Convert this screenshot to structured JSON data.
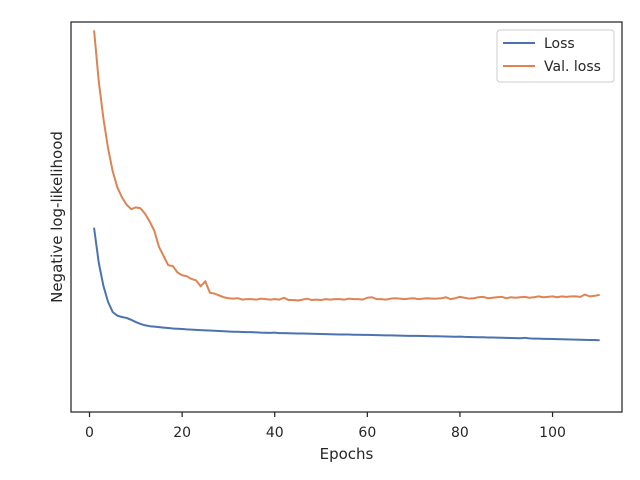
{
  "chart_data": {
    "type": "line",
    "xlabel": "Epochs",
    "ylabel": "Negative log-likelihood",
    "xlim": [
      -4,
      115
    ],
    "ylim": [
      -4.2,
      4.3
    ],
    "xticks": [
      0,
      20,
      40,
      60,
      80,
      100
    ],
    "xtick_labels": [
      "0",
      "20",
      "40",
      "60",
      "80",
      "100"
    ],
    "show_yticks": false,
    "grid": false,
    "legend": {
      "placement": "top-right"
    },
    "series": [
      {
        "name": "Loss",
        "color": "#4c72b0",
        "x": [
          1,
          2,
          3,
          4,
          5,
          6,
          7,
          8,
          9,
          10,
          11,
          12,
          13,
          14,
          15,
          16,
          17,
          18,
          19,
          20,
          21,
          22,
          23,
          24,
          25,
          26,
          27,
          28,
          29,
          30,
          31,
          32,
          33,
          34,
          35,
          36,
          37,
          38,
          39,
          40,
          41,
          42,
          43,
          44,
          45,
          46,
          47,
          48,
          49,
          50,
          51,
          52,
          53,
          54,
          55,
          56,
          57,
          58,
          59,
          60,
          61,
          62,
          63,
          64,
          65,
          66,
          67,
          68,
          69,
          70,
          71,
          72,
          73,
          74,
          75,
          76,
          77,
          78,
          79,
          80,
          81,
          82,
          83,
          84,
          85,
          86,
          87,
          88,
          89,
          90,
          91,
          92,
          93,
          94,
          95,
          96,
          97,
          98,
          99,
          100,
          101,
          102,
          103,
          104,
          105,
          106,
          107,
          108,
          109,
          110
        ],
        "y": [
          -0.2,
          -0.95,
          -1.45,
          -1.8,
          -2.02,
          -2.1,
          -2.13,
          -2.15,
          -2.19,
          -2.24,
          -2.28,
          -2.31,
          -2.33,
          -2.34,
          -2.35,
          -2.36,
          -2.37,
          -2.38,
          -2.385,
          -2.39,
          -2.4,
          -2.405,
          -2.41,
          -2.415,
          -2.42,
          -2.425,
          -2.43,
          -2.435,
          -2.44,
          -2.445,
          -2.45,
          -2.452,
          -2.455,
          -2.458,
          -2.46,
          -2.465,
          -2.47,
          -2.472,
          -2.475,
          -2.47,
          -2.48,
          -2.482,
          -2.485,
          -2.487,
          -2.49,
          -2.49,
          -2.492,
          -2.495,
          -2.497,
          -2.5,
          -2.502,
          -2.505,
          -2.507,
          -2.51,
          -2.51,
          -2.512,
          -2.515,
          -2.517,
          -2.52,
          -2.52,
          -2.522,
          -2.525,
          -2.527,
          -2.53,
          -2.53,
          -2.533,
          -2.535,
          -2.538,
          -2.54,
          -2.54,
          -2.542,
          -2.545,
          -2.547,
          -2.55,
          -2.55,
          -2.553,
          -2.555,
          -2.557,
          -2.56,
          -2.558,
          -2.563,
          -2.565,
          -2.567,
          -2.57,
          -2.572,
          -2.575,
          -2.577,
          -2.58,
          -2.582,
          -2.585,
          -2.587,
          -2.59,
          -2.592,
          -2.583,
          -2.595,
          -2.6,
          -2.602,
          -2.605,
          -2.607,
          -2.61,
          -2.612,
          -2.615,
          -2.617,
          -2.62,
          -2.622,
          -2.625,
          -2.627,
          -2.63,
          -2.632,
          -2.635
        ]
      },
      {
        "name": "Val. loss",
        "color": "#dd8452",
        "x": [
          1,
          2,
          3,
          4,
          5,
          6,
          7,
          8,
          9,
          10,
          11,
          12,
          13,
          14,
          15,
          16,
          17,
          18,
          19,
          20,
          21,
          22,
          23,
          24,
          25,
          26,
          27,
          28,
          29,
          30,
          31,
          32,
          33,
          34,
          35,
          36,
          37,
          38,
          39,
          40,
          41,
          42,
          43,
          44,
          45,
          46,
          47,
          48,
          49,
          50,
          51,
          52,
          53,
          54,
          55,
          56,
          57,
          58,
          59,
          60,
          61,
          62,
          63,
          64,
          65,
          66,
          67,
          68,
          69,
          70,
          71,
          72,
          73,
          74,
          75,
          76,
          77,
          78,
          79,
          80,
          81,
          82,
          83,
          84,
          85,
          86,
          87,
          88,
          89,
          90,
          91,
          92,
          93,
          94,
          95,
          96,
          97,
          98,
          99,
          100,
          101,
          102,
          103,
          104,
          105,
          106,
          107,
          108,
          109,
          110
        ],
        "y": [
          4.1,
          3.0,
          2.2,
          1.55,
          1.05,
          0.7,
          0.48,
          0.32,
          0.22,
          0.26,
          0.24,
          0.12,
          -0.05,
          -0.25,
          -0.6,
          -0.8,
          -1.0,
          -1.02,
          -1.16,
          -1.22,
          -1.24,
          -1.3,
          -1.33,
          -1.46,
          -1.35,
          -1.6,
          -1.62,
          -1.66,
          -1.7,
          -1.72,
          -1.73,
          -1.72,
          -1.75,
          -1.74,
          -1.74,
          -1.75,
          -1.73,
          -1.74,
          -1.75,
          -1.74,
          -1.75,
          -1.71,
          -1.76,
          -1.76,
          -1.77,
          -1.75,
          -1.73,
          -1.76,
          -1.75,
          -1.76,
          -1.74,
          -1.75,
          -1.74,
          -1.74,
          -1.75,
          -1.73,
          -1.74,
          -1.74,
          -1.75,
          -1.71,
          -1.7,
          -1.74,
          -1.74,
          -1.75,
          -1.73,
          -1.72,
          -1.73,
          -1.74,
          -1.73,
          -1.72,
          -1.74,
          -1.73,
          -1.72,
          -1.73,
          -1.73,
          -1.72,
          -1.7,
          -1.74,
          -1.72,
          -1.69,
          -1.71,
          -1.73,
          -1.72,
          -1.7,
          -1.69,
          -1.72,
          -1.71,
          -1.7,
          -1.69,
          -1.72,
          -1.7,
          -1.71,
          -1.7,
          -1.69,
          -1.71,
          -1.7,
          -1.68,
          -1.7,
          -1.69,
          -1.68,
          -1.7,
          -1.68,
          -1.69,
          -1.68,
          -1.68,
          -1.69,
          -1.64,
          -1.68,
          -1.67,
          -1.65
        ]
      }
    ]
  }
}
